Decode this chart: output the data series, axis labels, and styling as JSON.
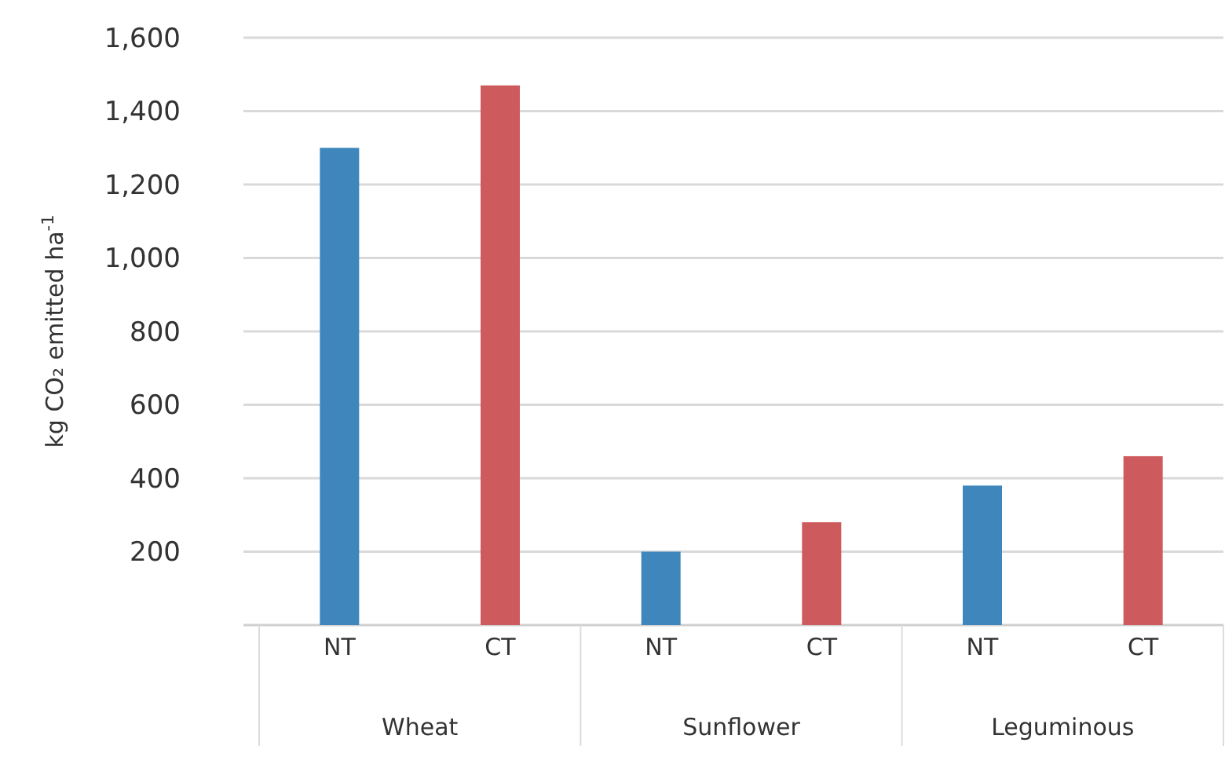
{
  "chart_data": {
    "type": "bar",
    "ylabel": "kg CO₂ emitted ha$^{-1}$",
    "categories": [
      "Wheat",
      "Sunflower",
      "Leguminous"
    ],
    "series": [
      {
        "name": "NT",
        "color": "#3f86bd",
        "values": [
          1300,
          200,
          380
        ]
      },
      {
        "name": "CT",
        "color": "#cd5a5c",
        "values": [
          1470,
          280,
          460
        ]
      }
    ],
    "ylim": [
      0,
      1600
    ],
    "yticks": [
      {
        "value": 200,
        "label": "200"
      },
      {
        "value": 400,
        "label": "400"
      },
      {
        "value": 600,
        "label": "600"
      },
      {
        "value": 800,
        "label": "800"
      },
      {
        "value": 1000,
        "label": "1,000"
      },
      {
        "value": 1200,
        "label": "1,200"
      },
      {
        "value": 1400,
        "label": "1,400"
      },
      {
        "value": 1600,
        "label": "1,600"
      }
    ],
    "grid": true,
    "legend": false
  }
}
